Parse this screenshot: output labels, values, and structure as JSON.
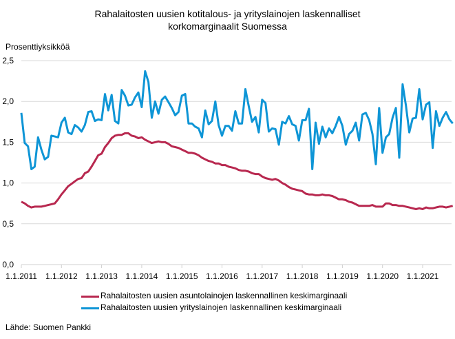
{
  "chart_data": {
    "type": "line",
    "title_lines": [
      "Rahalaitosten uusien kotitalous- ja yrityslainojen  laskennalliset",
      "korkomarginaalit Suomessa"
    ],
    "ylabel": "Prosenttiyksikköä",
    "ylim": [
      0,
      2.5
    ],
    "yticks": [
      "0,0",
      "0,5",
      "1,0",
      "1,5",
      "2,0",
      "2,5"
    ],
    "ytick_values": [
      0,
      0.5,
      1.0,
      1.5,
      2.0,
      2.5
    ],
    "xticks": [
      "1.1.2011",
      "1.1.2012",
      "1.1.2013",
      "1.1.2014",
      "1.1.2015",
      "1.1.2016",
      "1.1.2017",
      "1.1.2018",
      "1.1.2019",
      "1.1.2020",
      "1.1.2021"
    ],
    "x_start": "2011-01",
    "x_frequency": "monthly",
    "grid": "horizontal",
    "legend_placement": "bottom",
    "series": [
      {
        "name": "Rahalaitosten uusien asuntolainojen laskennallinen keskimarginaali",
        "color": "#b8284f",
        "values": [
          0.77,
          0.75,
          0.72,
          0.7,
          0.71,
          0.71,
          0.71,
          0.72,
          0.73,
          0.74,
          0.75,
          0.8,
          0.86,
          0.91,
          0.96,
          0.99,
          1.02,
          1.05,
          1.06,
          1.12,
          1.14,
          1.2,
          1.27,
          1.34,
          1.36,
          1.44,
          1.49,
          1.55,
          1.58,
          1.59,
          1.59,
          1.61,
          1.61,
          1.58,
          1.57,
          1.55,
          1.56,
          1.53,
          1.51,
          1.49,
          1.5,
          1.51,
          1.5,
          1.5,
          1.48,
          1.45,
          1.44,
          1.43,
          1.41,
          1.39,
          1.37,
          1.37,
          1.36,
          1.34,
          1.31,
          1.29,
          1.27,
          1.26,
          1.24,
          1.24,
          1.22,
          1.22,
          1.2,
          1.19,
          1.18,
          1.16,
          1.15,
          1.15,
          1.14,
          1.12,
          1.11,
          1.11,
          1.08,
          1.06,
          1.05,
          1.04,
          1.05,
          1.03,
          1.0,
          0.98,
          0.95,
          0.93,
          0.92,
          0.91,
          0.9,
          0.87,
          0.86,
          0.86,
          0.85,
          0.85,
          0.86,
          0.85,
          0.85,
          0.84,
          0.82,
          0.8,
          0.8,
          0.79,
          0.77,
          0.76,
          0.74,
          0.72,
          0.72,
          0.72,
          0.72,
          0.73,
          0.71,
          0.71,
          0.71,
          0.75,
          0.75,
          0.73,
          0.73,
          0.72,
          0.72,
          0.71,
          0.7,
          0.69,
          0.68,
          0.69,
          0.68,
          0.7,
          0.69,
          0.69,
          0.7,
          0.71,
          0.71,
          0.7,
          0.71,
          0.72
        ]
      },
      {
        "name": "Rahalaitosten uusien yrityslainojen laskennallinen keskimarginaali",
        "color": "#0e95d6",
        "values": [
          1.86,
          1.49,
          1.45,
          1.17,
          1.2,
          1.56,
          1.41,
          1.29,
          1.32,
          1.58,
          1.57,
          1.56,
          1.74,
          1.8,
          1.62,
          1.6,
          1.71,
          1.68,
          1.63,
          1.71,
          1.87,
          1.88,
          1.76,
          1.78,
          1.77,
          2.09,
          1.89,
          2.08,
          1.76,
          1.73,
          2.14,
          2.07,
          1.95,
          1.96,
          2.05,
          2.11,
          1.93,
          2.37,
          2.24,
          1.8,
          2.0,
          1.85,
          2.02,
          2.06,
          1.99,
          1.92,
          1.83,
          1.87,
          2.07,
          2.09,
          1.73,
          1.73,
          1.69,
          1.67,
          1.56,
          1.89,
          1.72,
          1.76,
          2.0,
          1.71,
          1.58,
          1.7,
          1.7,
          1.64,
          1.88,
          1.73,
          1.73,
          2.15,
          1.94,
          1.75,
          1.81,
          1.62,
          2.02,
          1.98,
          1.63,
          1.67,
          1.66,
          1.47,
          1.75,
          1.73,
          1.82,
          1.72,
          1.7,
          1.52,
          1.77,
          1.77,
          1.91,
          1.17,
          1.74,
          1.48,
          1.69,
          1.56,
          1.67,
          1.61,
          1.7,
          1.81,
          1.7,
          1.47,
          1.6,
          1.64,
          1.74,
          1.52,
          1.84,
          1.86,
          1.77,
          1.6,
          1.23,
          1.92,
          1.37,
          1.56,
          1.6,
          1.8,
          1.92,
          1.31,
          2.21,
          1.95,
          1.62,
          1.79,
          1.8,
          2.15,
          1.78,
          1.96,
          1.99,
          1.43,
          1.88,
          1.7,
          1.8,
          1.87,
          1.78,
          1.73
        ]
      }
    ]
  },
  "source": "Lähde: Suomen Pankki",
  "grid_color": "#d9d9d9"
}
